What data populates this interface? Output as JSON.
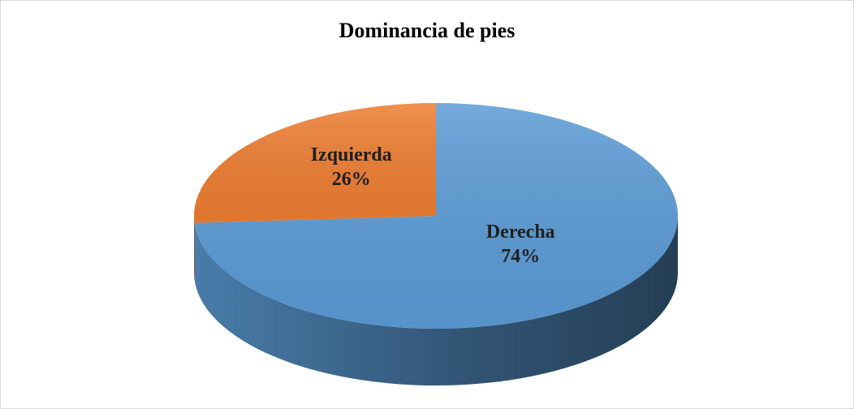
{
  "chart_data": {
    "type": "pie",
    "title": "Dominancia de pies",
    "categories": [
      "Derecha",
      "Izquierda"
    ],
    "values": [
      74,
      26
    ],
    "value_labels": [
      "74%",
      "26%"
    ],
    "colors": [
      "#5b9bd5",
      "#ed7d31"
    ]
  }
}
